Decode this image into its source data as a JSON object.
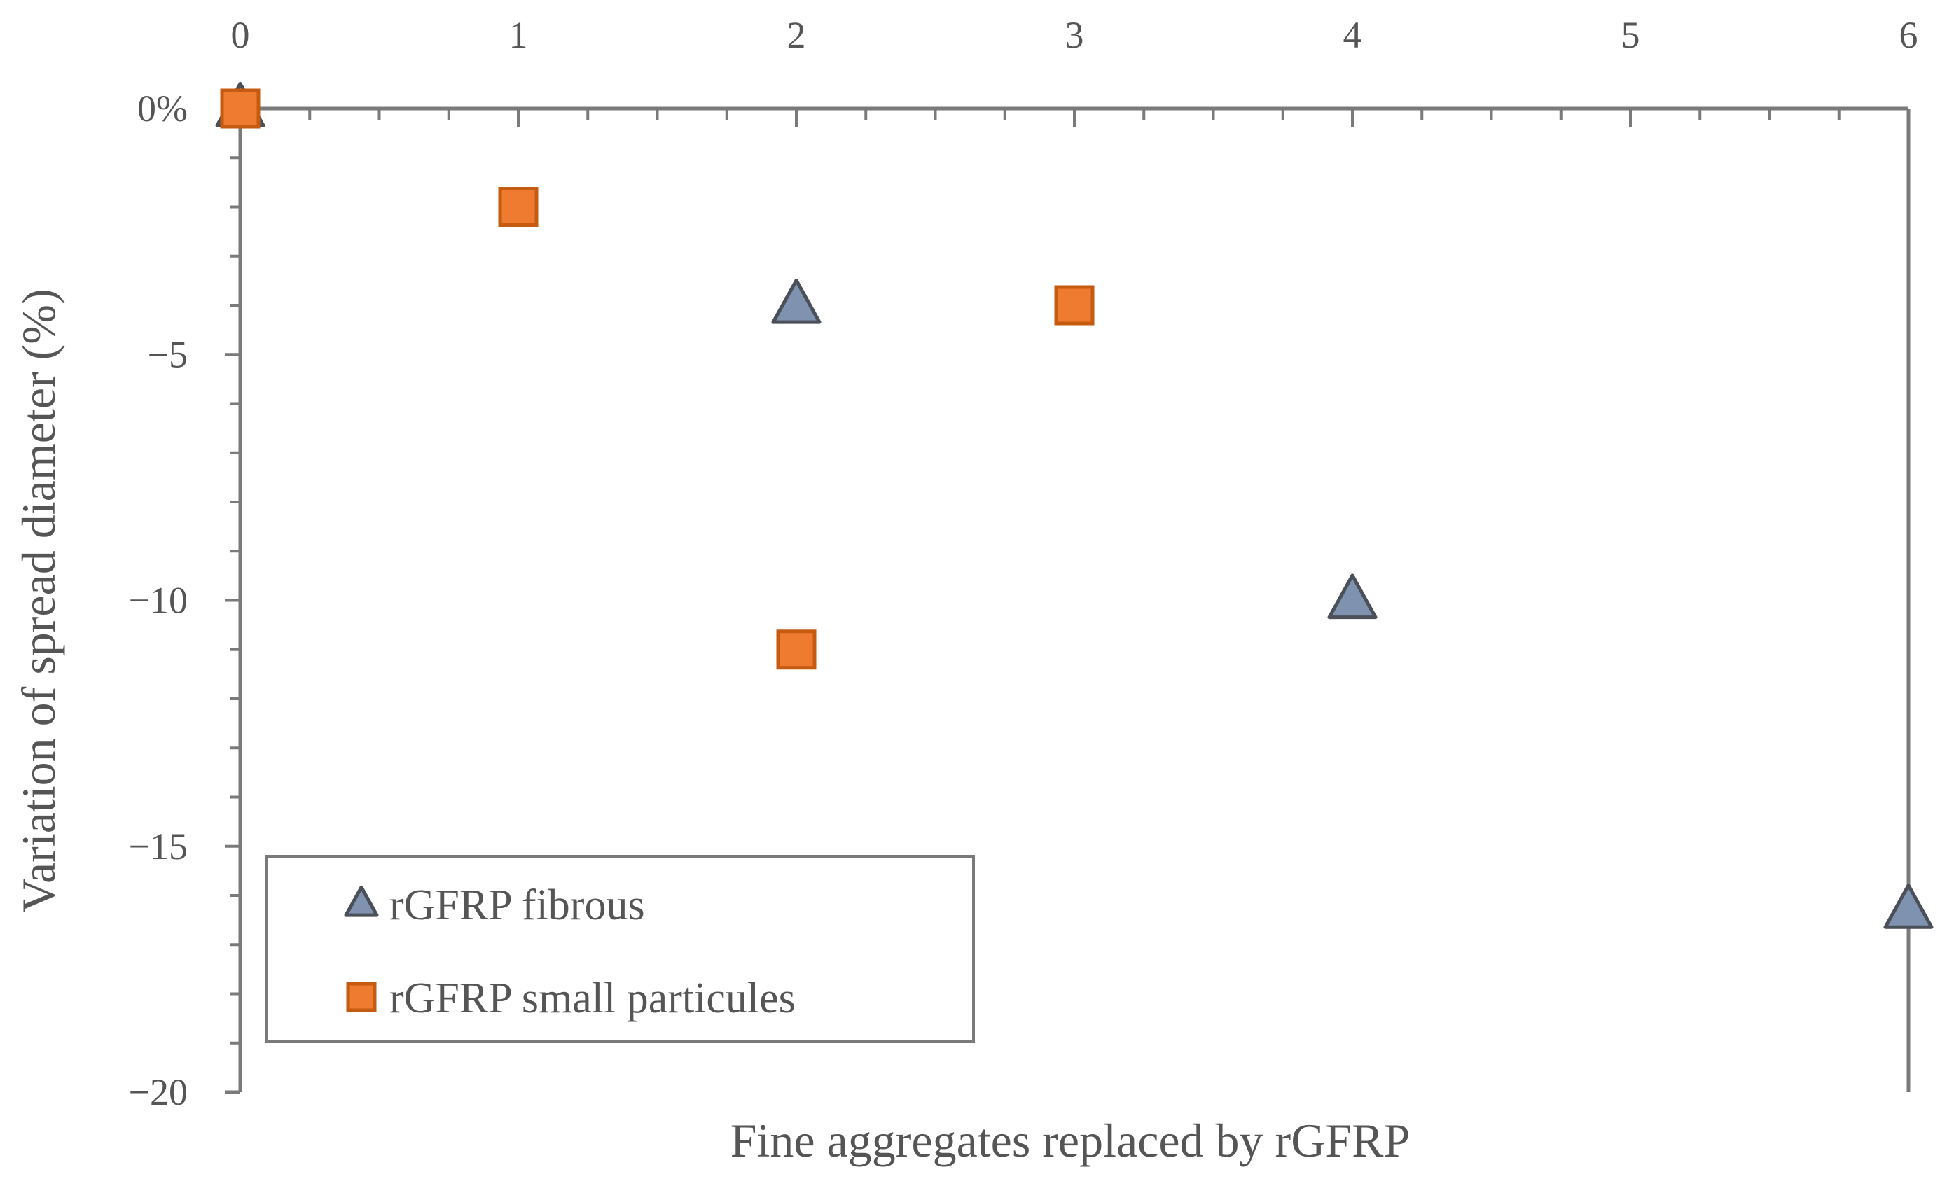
{
  "chart_data": {
    "type": "scatter",
    "title": "",
    "xlabel": "Fine aggregates replaced by rGFRP",
    "ylabel": "Variation of spread diameter (%)",
    "xlim": [
      0,
      6
    ],
    "ylim": [
      -20,
      0
    ],
    "x_ticks": [
      "0",
      "1",
      "2",
      "3",
      "4",
      "5",
      "6"
    ],
    "y_ticks": [
      {
        "value": 0,
        "label": "0%"
      },
      {
        "value": -5,
        "label": "−5"
      },
      {
        "value": -10,
        "label": "−10"
      },
      {
        "value": -15,
        "label": "−15"
      },
      {
        "value": -20,
        "label": "−20"
      }
    ],
    "x_axis_position": "top",
    "grid": false,
    "legend_position": "bottom-left",
    "series": [
      {
        "name": "rGFRP fibrous",
        "marker": "triangle",
        "color": "#7f93b1",
        "edge_color": "#4a4f58",
        "points": [
          [
            0,
            0
          ],
          [
            2,
            -4
          ],
          [
            4,
            -10
          ],
          [
            6,
            -16.3
          ]
        ]
      },
      {
        "name": "rGFRP small particules",
        "marker": "square",
        "color": "#ee7b30",
        "edge_color": "#c55a11",
        "points": [
          [
            0,
            0
          ],
          [
            1,
            -2
          ],
          [
            2,
            -11
          ],
          [
            3,
            -4
          ]
        ]
      }
    ]
  }
}
